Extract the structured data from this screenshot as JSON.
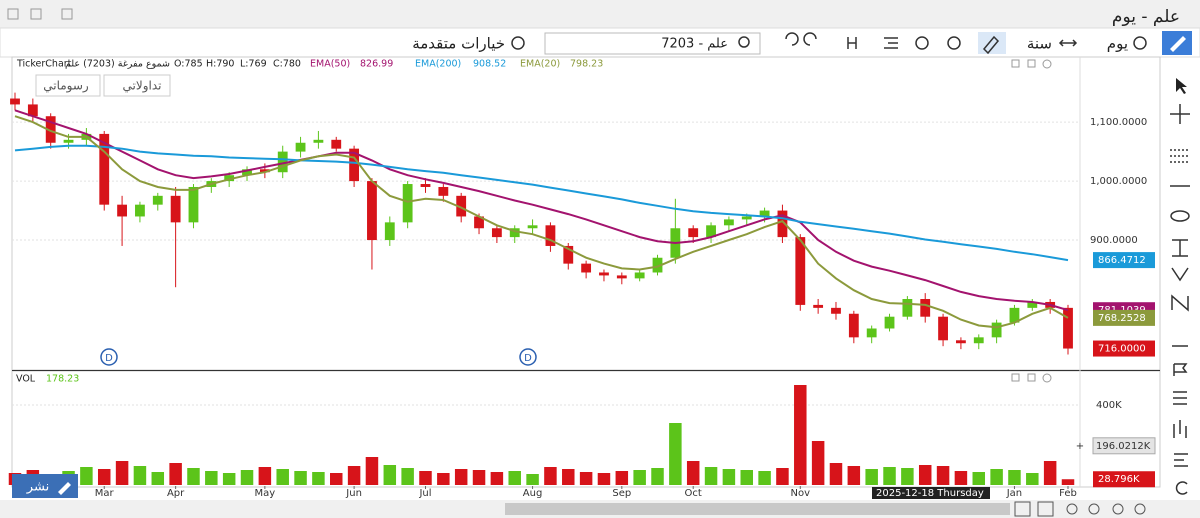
{
  "window": {
    "title": "علم - يوم"
  },
  "toolbar": {
    "period": "يوم",
    "range": "سنة",
    "search": "7203 - علم",
    "advanced": "خيارات متقدمة"
  },
  "chart_header": {
    "source": "TickerChart",
    "series_name": "شموع مفرغة (7203) علم",
    "ohlc": [
      "O:785",
      "H:790",
      "L:769",
      "C:780"
    ]
  },
  "buttons": [
    "تداولاتي",
    "رسوماتي"
  ],
  "publish": "نشر",
  "markers": [
    "D",
    "D"
  ],
  "crosshair_date": "2025-12-18 Thursday",
  "chart_data": [
    {
      "type": "candlestick",
      "categories": [
        null,
        null,
        null,
        null,
        null,
        "Mar",
        null,
        null,
        null,
        "Apr",
        null,
        null,
        null,
        null,
        "May",
        null,
        null,
        null,
        null,
        "Jun",
        null,
        null,
        null,
        "Jul",
        null,
        null,
        null,
        null,
        null,
        "Aug",
        null,
        null,
        null,
        null,
        "Sep",
        null,
        null,
        null,
        "Oct",
        null,
        null,
        null,
        null,
        null,
        "Nov",
        null,
        null,
        null,
        null,
        null,
        null,
        null,
        null,
        null,
        null,
        null,
        "Jan",
        null,
        null,
        "Feb"
      ],
      "open": [
        1140,
        1130,
        1110,
        1065,
        1070,
        1080,
        960,
        940,
        960,
        975,
        930,
        990,
        1000,
        1010,
        1020,
        1015,
        1050,
        1065,
        1070,
        1055,
        1000,
        900,
        930,
        995,
        990,
        975,
        940,
        920,
        905,
        920,
        925,
        890,
        860,
        845,
        840,
        835,
        845,
        870,
        920,
        905,
        925,
        935,
        940,
        950,
        905,
        790,
        785,
        775,
        735,
        750,
        770,
        800,
        770,
        730,
        725,
        735,
        760,
        785,
        795,
        785
      ],
      "high": [
        1150,
        1140,
        1115,
        1080,
        1090,
        1085,
        975,
        965,
        980,
        990,
        995,
        1005,
        1015,
        1025,
        1030,
        1060,
        1075,
        1085,
        1075,
        1060,
        1005,
        940,
        1000,
        1005,
        995,
        980,
        945,
        925,
        925,
        935,
        930,
        895,
        865,
        850,
        845,
        850,
        875,
        970,
        925,
        930,
        940,
        945,
        955,
        960,
        910,
        800,
        795,
        780,
        755,
        775,
        805,
        810,
        775,
        735,
        740,
        765,
        790,
        800,
        800,
        790
      ],
      "low": [
        1120,
        1100,
        1055,
        1055,
        1060,
        950,
        890,
        930,
        950,
        820,
        920,
        980,
        990,
        1000,
        1005,
        1005,
        1040,
        1055,
        1050,
        990,
        850,
        890,
        920,
        980,
        965,
        930,
        910,
        895,
        895,
        910,
        880,
        850,
        835,
        830,
        825,
        830,
        840,
        860,
        895,
        895,
        915,
        925,
        930,
        895,
        780,
        775,
        765,
        725,
        725,
        745,
        765,
        760,
        720,
        715,
        715,
        725,
        755,
        780,
        775,
        706
      ],
      "close": [
        1130,
        1110,
        1065,
        1070,
        1080,
        960,
        940,
        960,
        975,
        930,
        990,
        1000,
        1010,
        1020,
        1015,
        1050,
        1065,
        1070,
        1055,
        1000,
        900,
        930,
        995,
        990,
        975,
        940,
        920,
        905,
        920,
        925,
        890,
        860,
        845,
        840,
        835,
        845,
        870,
        920,
        905,
        925,
        935,
        940,
        950,
        905,
        790,
        785,
        775,
        735,
        750,
        770,
        800,
        770,
        730,
        725,
        735,
        760,
        785,
        795,
        785,
        716
      ],
      "close_tag": "716.0000",
      "up_color": "#5cc41a",
      "down_color": "#d7141a",
      "series": [
        {
          "name": "EMA(50)",
          "color": "#a3136e",
          "header_value": "826.99",
          "tag": "781.1039",
          "values": [
            1120,
            1110,
            1100,
            1090,
            1080,
            1065,
            1050,
            1035,
            1020,
            1010,
            1005,
            1008,
            1012,
            1018,
            1024,
            1030,
            1036,
            1042,
            1048,
            1048,
            1035,
            1020,
            1010,
            1003,
            997,
            990,
            983,
            975,
            967,
            960,
            952,
            944,
            935,
            925,
            915,
            905,
            898,
            895,
            898,
            905,
            915,
            925,
            935,
            942,
            930,
            900,
            880,
            865,
            855,
            848,
            840,
            832,
            822,
            812,
            805,
            800,
            797,
            795,
            790,
            781
          ]
        },
        {
          "name": "EMA(200)",
          "color": "#1a9ad9",
          "header_value": "908.52",
          "tag": "866.4712",
          "values": [
            1052,
            1055,
            1058,
            1060,
            1060,
            1058,
            1055,
            1050,
            1047,
            1045,
            1043,
            1042,
            1040,
            1039,
            1038,
            1037,
            1035,
            1034,
            1033,
            1031,
            1028,
            1024,
            1020,
            1017,
            1014,
            1010,
            1006,
            1002,
            998,
            994,
            989,
            984,
            979,
            974,
            969,
            963,
            958,
            953,
            949,
            946,
            944,
            942,
            940,
            937,
            931,
            927,
            923,
            919,
            915,
            911,
            906,
            901,
            897,
            893,
            889,
            885,
            880,
            876,
            871,
            866
          ]
        },
        {
          "name": "EMA(20)",
          "color": "#8c9a3c",
          "header_value": "798.23",
          "tag": "768.2528",
          "values": [
            1110,
            1100,
            1085,
            1075,
            1075,
            1050,
            1020,
            1000,
            990,
            985,
            985,
            995,
            1003,
            1010,
            1015,
            1025,
            1035,
            1042,
            1045,
            1040,
            1000,
            975,
            965,
            970,
            968,
            955,
            940,
            925,
            915,
            910,
            900,
            885,
            870,
            860,
            852,
            850,
            855,
            868,
            880,
            890,
            900,
            910,
            922,
            932,
            900,
            860,
            835,
            815,
            800,
            793,
            792,
            790,
            780,
            765,
            755,
            752,
            760,
            775,
            785,
            768
          ]
        }
      ],
      "ylim": [
        683,
        1185
      ],
      "yticks": [
        {
          "value": 900,
          "label": "900.0000"
        },
        {
          "value": 1000,
          "label": "1,000.0000"
        },
        {
          "value": 1100,
          "label": "1,100.0000"
        }
      ],
      "grid": true
    },
    {
      "type": "bar",
      "name": "VOL",
      "header_value": "178.23",
      "values": [
        60000,
        75000,
        55000,
        70000,
        90000,
        80000,
        120000,
        95000,
        65000,
        110000,
        85000,
        70000,
        60000,
        75000,
        90000,
        80000,
        70000,
        65000,
        60000,
        95000,
        140000,
        100000,
        85000,
        70000,
        60000,
        80000,
        75000,
        65000,
        70000,
        55000,
        90000,
        80000,
        65000,
        60000,
        70000,
        75000,
        85000,
        310000,
        120000,
        90000,
        80000,
        75000,
        70000,
        85000,
        500000,
        220000,
        110000,
        95000,
        80000,
        90000,
        85000,
        100000,
        95000,
        70000,
        65000,
        80000,
        75000,
        60000,
        120000,
        28796
      ],
      "last_label": "28.796K",
      "markers": [
        {
          "value": 196021.2,
          "label": "196.0212K"
        }
      ],
      "ylim": [
        0,
        535000
      ],
      "yticks": [
        {
          "value": 400000,
          "label": "400K"
        }
      ],
      "grid": true
    }
  ]
}
